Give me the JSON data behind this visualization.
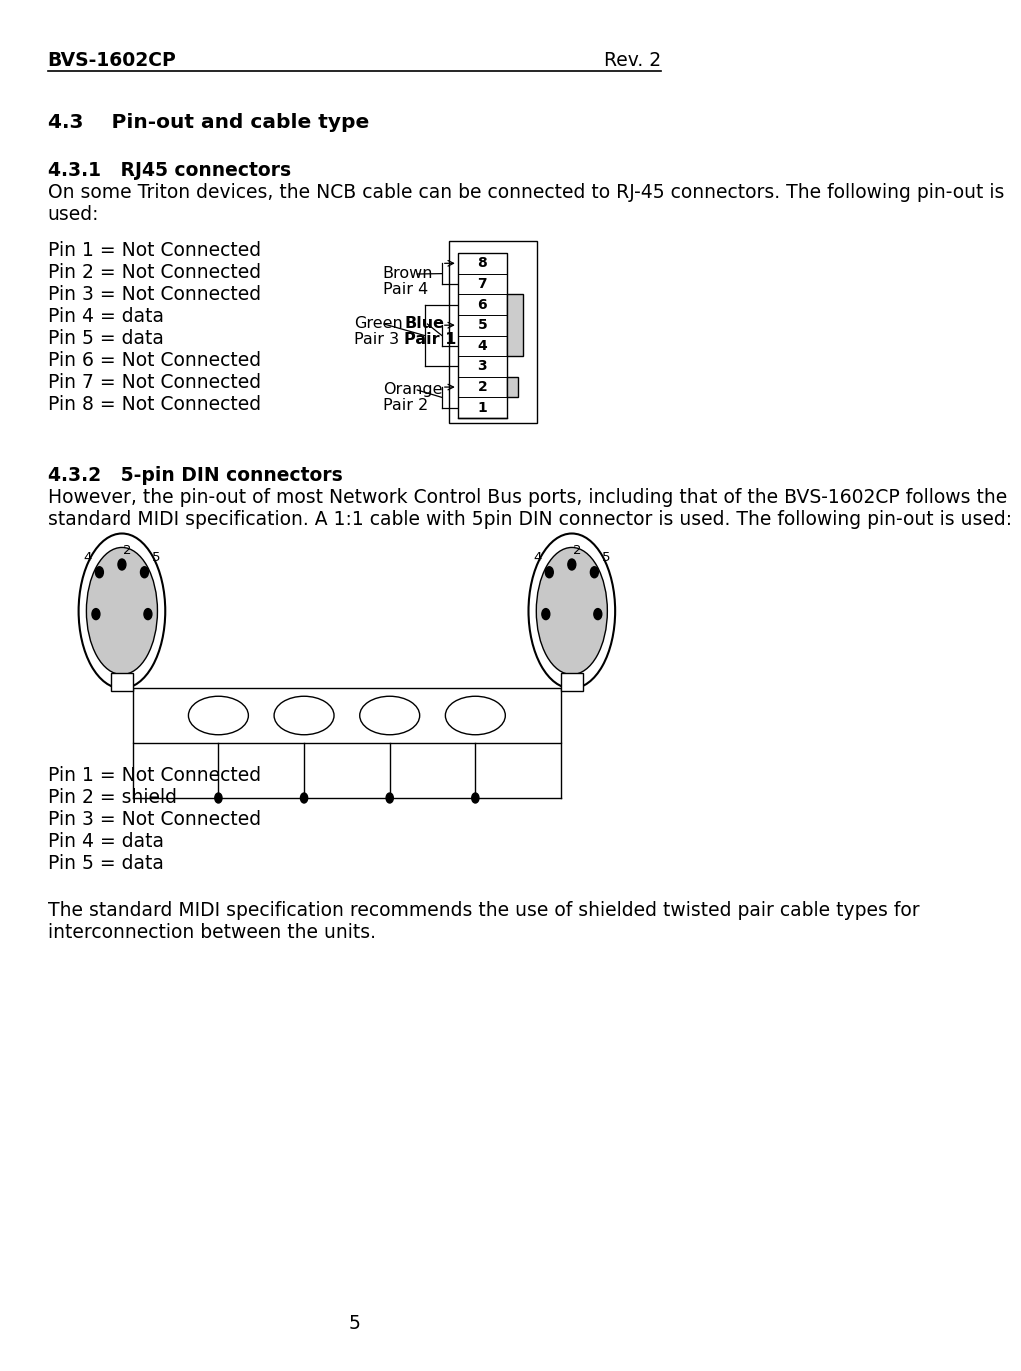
{
  "title_left": "BVS-1602CP",
  "title_right": "Rev. 2",
  "section_43": "4.3    Pin-out and cable type",
  "section_431": "4.3.1   RJ45 connectors",
  "text_431_line1": "On some Triton devices, the NCB cable can be connected to RJ-45 connectors. The following pin-out is",
  "text_431_line2": "used:",
  "pin_list_rj45": [
    "Pin 1 = Not Connected",
    "Pin 2 = Not Connected",
    "Pin 3 = Not Connected",
    "Pin 4 = data",
    "Pin 5 = data",
    "Pin 6 = Not Connected",
    "Pin 7 = Not Connected",
    "Pin 8 = Not Connected"
  ],
  "section_432": "4.3.2   5-pin DIN connectors",
  "text_432_line1": "However, the pin-out of most Network Control Bus ports, including that of the BVS-1602CP follows the",
  "text_432_line2": "standard MIDI specification. A 1:1 cable with 5pin DIN connector is used. The following pin-out is used:",
  "pin_list_din": [
    "Pin 1 = Not Connected",
    "Pin 2 = shield",
    "Pin 3 = Not Connected",
    "Pin 4 = data",
    "Pin 5 = data"
  ],
  "text_footer_line1": "The standard MIDI specification recommends the use of shielded twisted pair cable types for",
  "text_footer_line2": "interconnection between the units.",
  "page_number": "5",
  "bg_color": "#ffffff",
  "text_color": "#000000",
  "rj45_pin_numbers": [
    "8",
    "7",
    "6",
    "5",
    "4",
    "3",
    "2",
    "1"
  ]
}
